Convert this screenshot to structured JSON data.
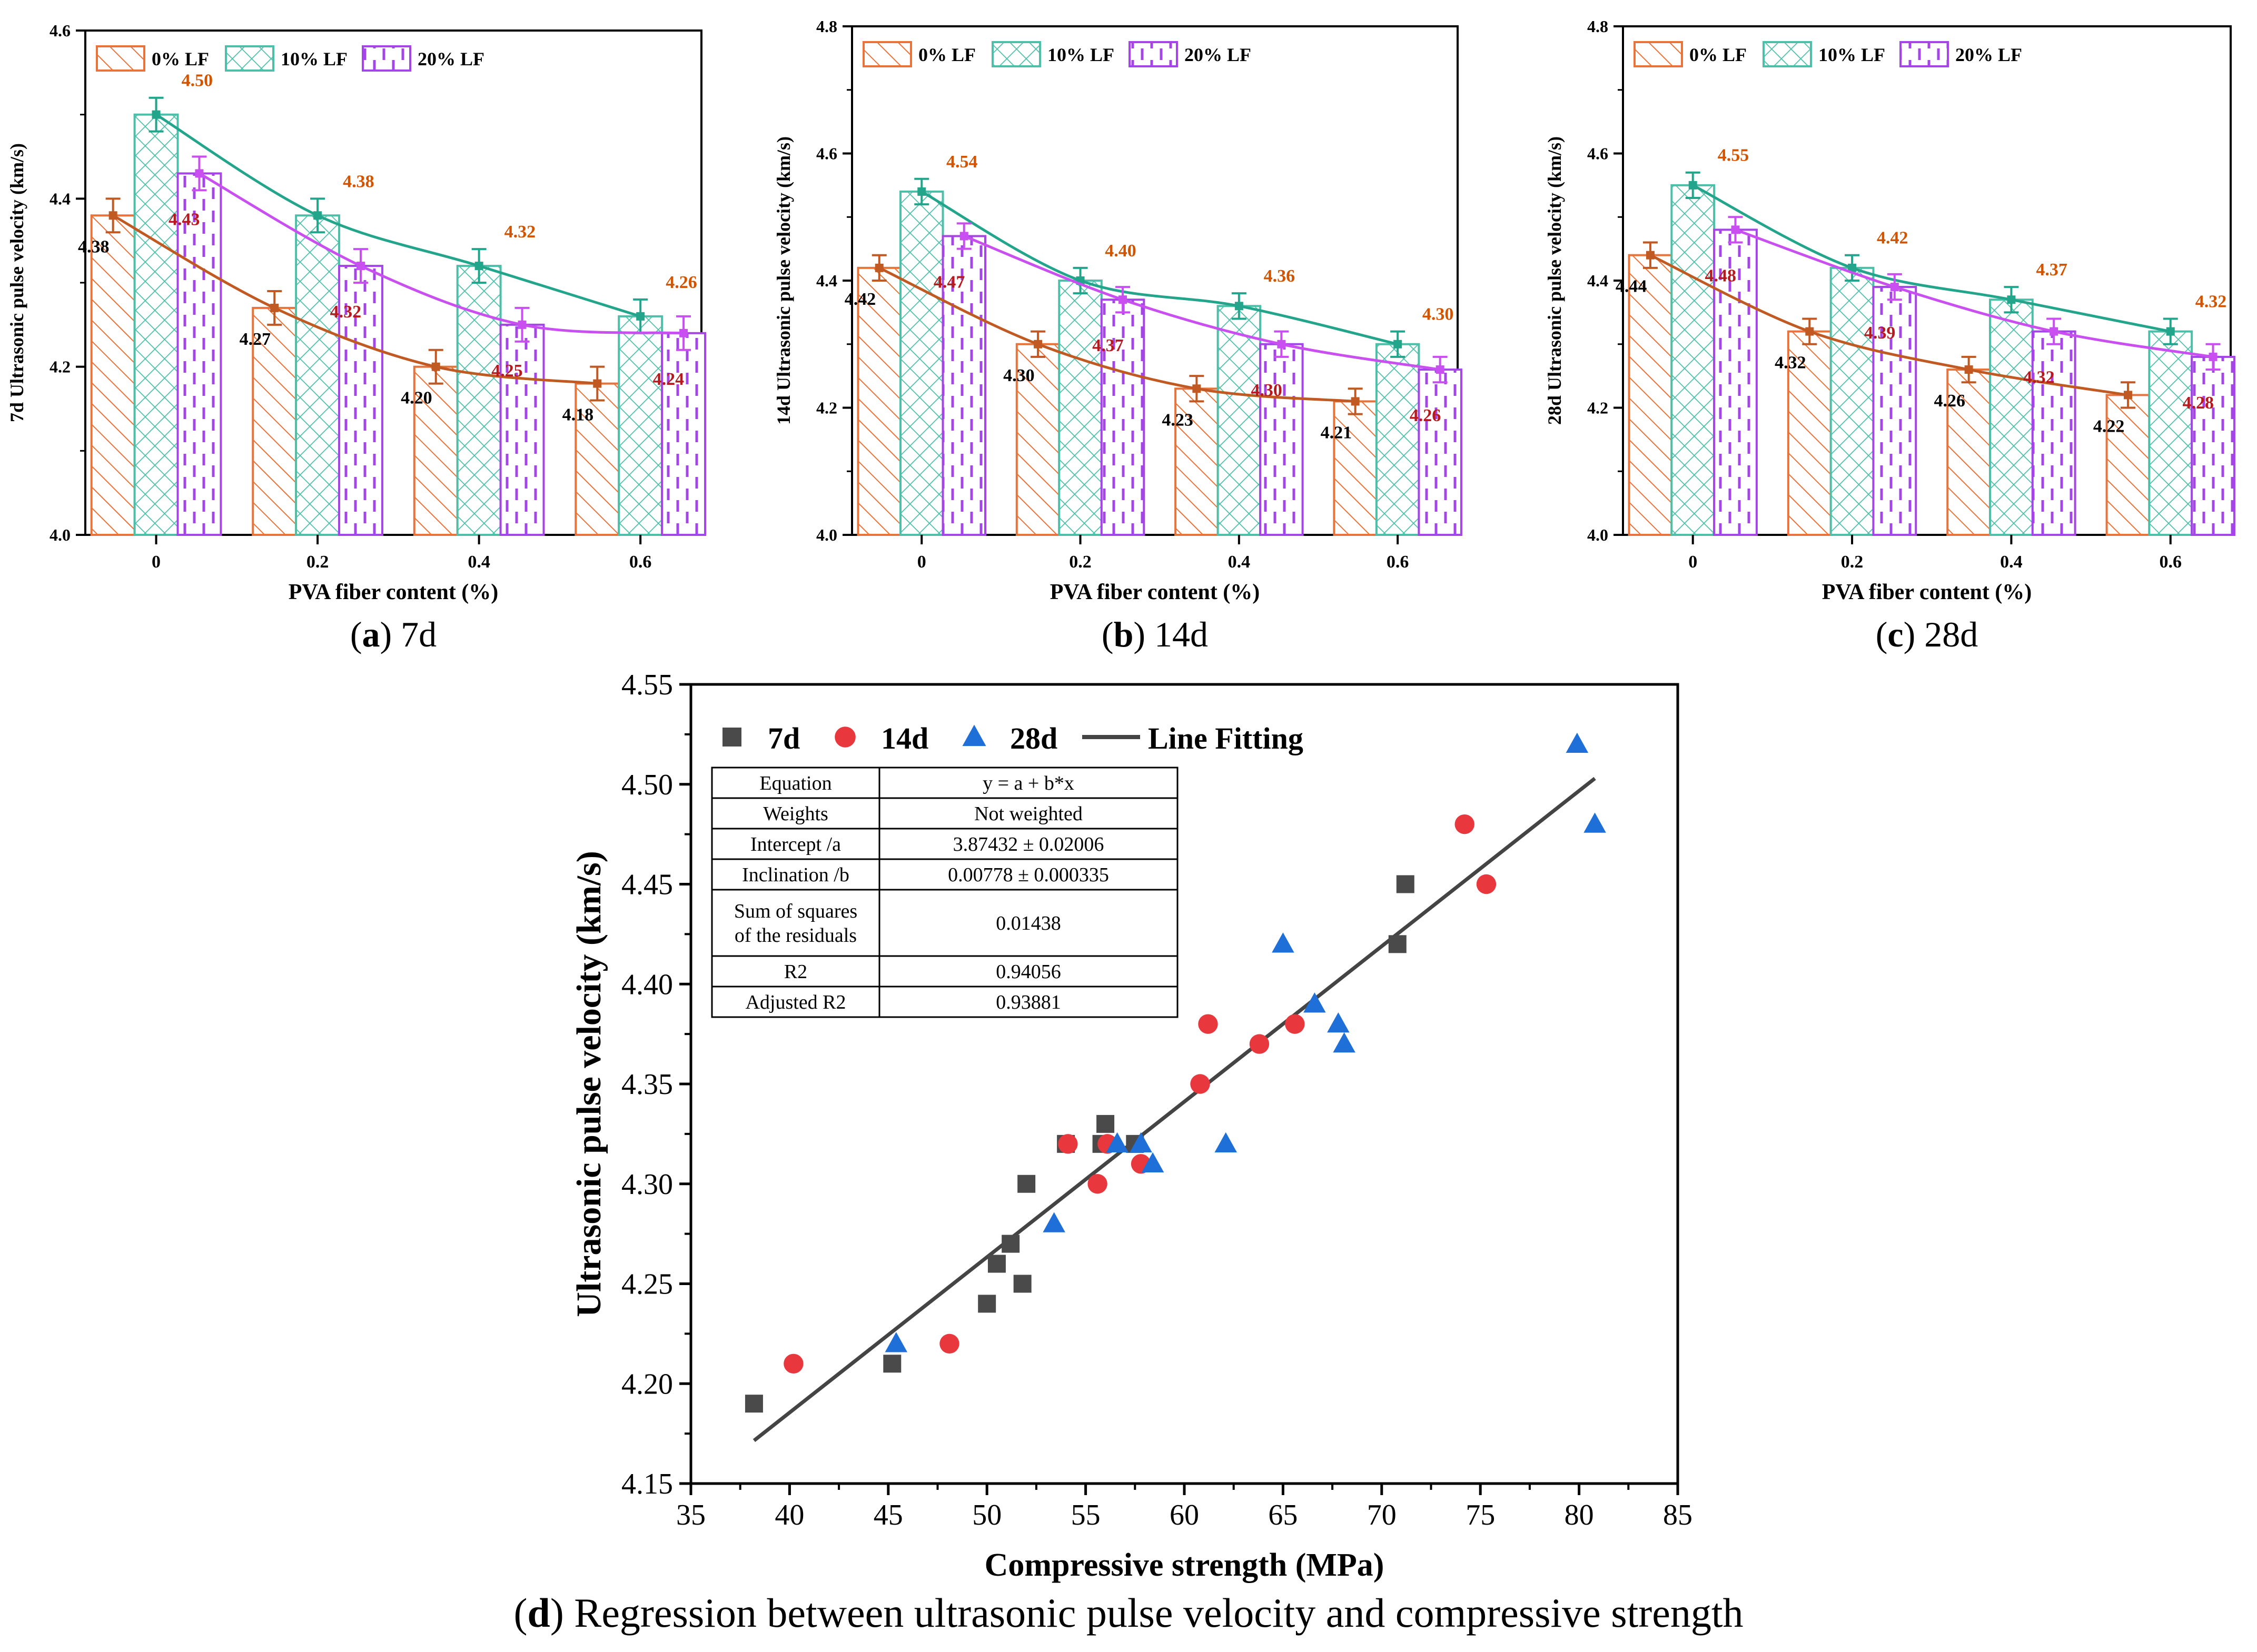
{
  "chart_data": [
    {
      "type": "bar",
      "panel": "a",
      "caption_letter": "a",
      "caption_text": ") 7d",
      "ylabel": "7d Ultrasonic pulse velocity (km/s)",
      "xlabel": "PVA fiber content (%)",
      "ylim": [
        4.0,
        4.6
      ],
      "yticks": [
        "4.0",
        "4.2",
        "4.4",
        "4.6"
      ],
      "categories": [
        "0",
        "0.2",
        "0.4",
        "0.6"
      ],
      "series": [
        {
          "name": "0% LF",
          "values": [
            4.38,
            4.27,
            4.2,
            4.18
          ],
          "errors": [
            0.02,
            0.02,
            0.02,
            0.02
          ],
          "labels": [
            "4.38",
            "4.27",
            "4.20",
            "4.18"
          ]
        },
        {
          "name": "10% LF",
          "values": [
            4.5,
            4.38,
            4.32,
            4.26
          ],
          "errors": [
            0.02,
            0.02,
            0.02,
            0.02
          ],
          "labels": [
            "4.50",
            "4.38",
            "4.32",
            "4.26"
          ]
        },
        {
          "name": "20% LF",
          "values": [
            4.43,
            4.32,
            4.25,
            4.24
          ],
          "errors": [
            0.02,
            0.02,
            0.02,
            0.02
          ],
          "labels": [
            "4.43",
            "4.32",
            "4.25",
            "4.24"
          ]
        }
      ],
      "colors": [
        "#e8743b",
        "#4dbfa9",
        "#a545e8"
      ],
      "line_colors": [
        "#c05a22",
        "#23a58c",
        "#c94ff0"
      ]
    },
    {
      "type": "bar",
      "panel": "b",
      "caption_letter": "b",
      "caption_text": ") 14d",
      "ylabel": "14d Ultrasonic pulse velocity (km/s)",
      "xlabel": "PVA fiber content (%)",
      "ylim": [
        4.0,
        4.8
      ],
      "yticks": [
        "4.0",
        "4.2",
        "4.4",
        "4.6",
        "4.8"
      ],
      "categories": [
        "0",
        "0.2",
        "0.4",
        "0.6"
      ],
      "series": [
        {
          "name": "0% LF",
          "values": [
            4.42,
            4.3,
            4.23,
            4.21
          ],
          "errors": [
            0.02,
            0.02,
            0.02,
            0.02
          ],
          "labels": [
            "4.42",
            "4.30",
            "4.23",
            "4.21"
          ]
        },
        {
          "name": "10% LF",
          "values": [
            4.54,
            4.4,
            4.36,
            4.3
          ],
          "errors": [
            0.02,
            0.02,
            0.02,
            0.02
          ],
          "labels": [
            "4.54",
            "4.40",
            "4.36",
            "4.30"
          ]
        },
        {
          "name": "20% LF",
          "values": [
            4.47,
            4.37,
            4.3,
            4.26
          ],
          "errors": [
            0.02,
            0.02,
            0.02,
            0.02
          ],
          "labels": [
            "4.47",
            "4.37",
            "4.30",
            "4.26"
          ]
        }
      ],
      "colors": [
        "#e8743b",
        "#4dbfa9",
        "#a545e8"
      ],
      "line_colors": [
        "#c05a22",
        "#23a58c",
        "#c94ff0"
      ]
    },
    {
      "type": "bar",
      "panel": "c",
      "caption_letter": "c",
      "caption_text": ") 28d",
      "ylabel": "28d Ultrasonic pulse velocity (km/s)",
      "xlabel": "PVA fiber content (%)",
      "ylim": [
        4.0,
        4.8
      ],
      "yticks": [
        "4.0",
        "4.2",
        "4.4",
        "4.6",
        "4.8"
      ],
      "categories": [
        "0",
        "0.2",
        "0.4",
        "0.6"
      ],
      "series": [
        {
          "name": "0% LF",
          "values": [
            4.44,
            4.32,
            4.26,
            4.22
          ],
          "errors": [
            0.02,
            0.02,
            0.02,
            0.02
          ],
          "labels": [
            "4.44",
            "4.32",
            "4.26",
            "4.22"
          ]
        },
        {
          "name": "10% LF",
          "values": [
            4.55,
            4.42,
            4.37,
            4.32
          ],
          "errors": [
            0.02,
            0.02,
            0.02,
            0.02
          ],
          "labels": [
            "4.55",
            "4.42",
            "4.37",
            "4.32"
          ]
        },
        {
          "name": "20% LF",
          "values": [
            4.48,
            4.39,
            4.32,
            4.28
          ],
          "errors": [
            0.02,
            0.02,
            0.02,
            0.02
          ],
          "labels": [
            "4.48",
            "4.39",
            "4.32",
            "4.28"
          ]
        }
      ],
      "colors": [
        "#e8743b",
        "#4dbfa9",
        "#a545e8"
      ],
      "line_colors": [
        "#c05a22",
        "#23a58c",
        "#c94ff0"
      ]
    },
    {
      "type": "scatter",
      "panel": "d",
      "caption_letter": "d",
      "caption_text": ") Regression between ultrasonic pulse velocity and compressive strength",
      "xlabel": "Compressive strength (MPa)",
      "ylabel": "Ultrasonic pulse velocity (km/s)",
      "xlim": [
        35,
        85
      ],
      "ylim": [
        4.15,
        4.55
      ],
      "xticks": [
        "35",
        "40",
        "45",
        "50",
        "55",
        "60",
        "65",
        "70",
        "75",
        "80",
        "85"
      ],
      "yticks": [
        "4.15",
        "4.20",
        "4.25",
        "4.30",
        "4.35",
        "4.40",
        "4.45",
        "4.50",
        "4.55"
      ],
      "series": [
        {
          "name": "7d",
          "marker": "square",
          "color": "#4a4a4a",
          "points": [
            [
              38.2,
              4.19
            ],
            [
              45.2,
              4.21
            ],
            [
              50.0,
              4.24
            ],
            [
              50.5,
              4.26
            ],
            [
              51.2,
              4.27
            ],
            [
              51.8,
              4.25
            ],
            [
              52.0,
              4.3
            ],
            [
              54.0,
              4.32
            ],
            [
              56.0,
              4.33
            ],
            [
              55.8,
              4.32
            ],
            [
              57.5,
              4.32
            ],
            [
              70.8,
              4.42
            ],
            [
              71.2,
              4.45
            ]
          ]
        },
        {
          "name": "14d",
          "marker": "circle",
          "color": "#e8383d",
          "points": [
            [
              40.2,
              4.21
            ],
            [
              48.1,
              4.22
            ],
            [
              54.1,
              4.32
            ],
            [
              55.6,
              4.3
            ],
            [
              56.1,
              4.32
            ],
            [
              57.8,
              4.31
            ],
            [
              60.8,
              4.35
            ],
            [
              61.2,
              4.38
            ],
            [
              63.8,
              4.37
            ],
            [
              65.6,
              4.38
            ],
            [
              74.2,
              4.48
            ],
            [
              75.3,
              4.45
            ]
          ]
        },
        {
          "name": "28d",
          "marker": "triangle",
          "color": "#1f6fd8",
          "points": [
            [
              45.4,
              4.22
            ],
            [
              53.4,
              4.28
            ],
            [
              56.6,
              4.32
            ],
            [
              57.8,
              4.32
            ],
            [
              58.4,
              4.31
            ],
            [
              62.1,
              4.32
            ],
            [
              65.0,
              4.42
            ],
            [
              66.6,
              4.39
            ],
            [
              67.8,
              4.38
            ],
            [
              68.1,
              4.37
            ],
            [
              79.9,
              4.52
            ],
            [
              80.8,
              4.48
            ]
          ]
        },
        {
          "name": "Line Fitting",
          "type": "line",
          "color": "#444444",
          "x": [
            38.2,
            80.8
          ],
          "intercept": 3.87432,
          "slope": 0.00778
        }
      ],
      "table": [
        [
          "Equation",
          "y = a + b*x"
        ],
        [
          "Weights",
          "Not weighted"
        ],
        [
          "Intercept /a",
          "3.87432 ± 0.02006"
        ],
        [
          "Inclination /b",
          "0.00778 ± 0.000335"
        ],
        [
          "Sum of squares|of the residuals",
          "0.01438"
        ],
        [
          "R2",
          "0.94056"
        ],
        [
          "Adjusted R2",
          "0.93881"
        ]
      ]
    }
  ]
}
